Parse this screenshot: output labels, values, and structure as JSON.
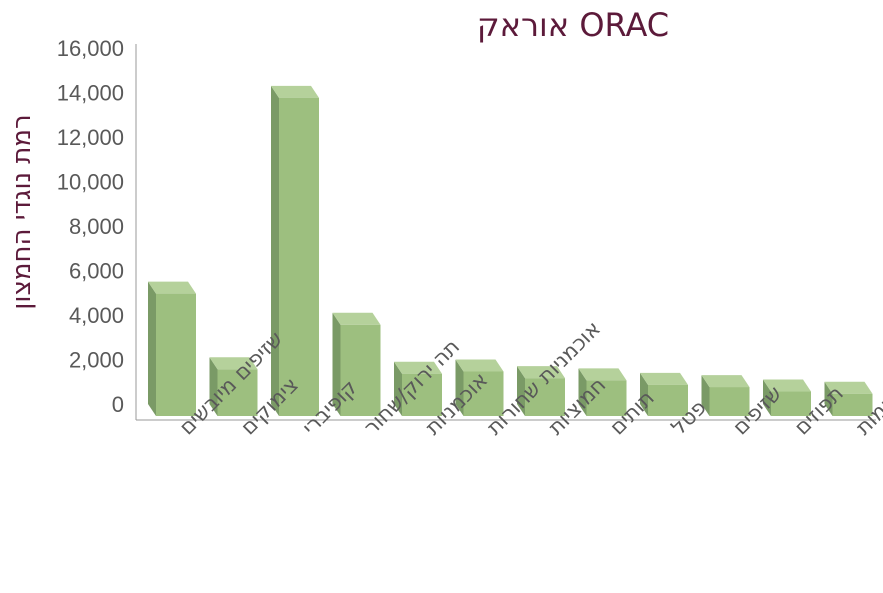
{
  "chart_data": {
    "type": "bar",
    "title": "אוראק ORAC",
    "ylabel": "רמת נוגדי החמצון",
    "xlabel": "",
    "ylim": [
      0,
      16000
    ],
    "yticks": [
      0,
      2000,
      4000,
      6000,
      8000,
      10000,
      12000,
      14000,
      16000
    ],
    "ytick_labels": [
      "0",
      "2,000",
      "4,000",
      "6,000",
      "8,000",
      "10,000",
      "12,000",
      "14,000",
      "16,000"
    ],
    "categories": [
      "שזיפים מיובשים",
      "צימוקים",
      "קופיברי",
      "תה ירוק/שחור",
      "אוכמניות",
      "אוכמניות שחורות",
      "חמוציות",
      "תותים",
      "פטל",
      "שזיפים",
      "תפוזים",
      "אשכליות אדומות"
    ],
    "values": [
      5500,
      2100,
      14300,
      4100,
      1900,
      2000,
      1700,
      1600,
      1400,
      1300,
      1100,
      1000
    ],
    "grid": false,
    "colors": {
      "bar_front": "#9dbf7f",
      "bar_side": "#7a9a66",
      "bar_top": "#b5d19b",
      "title": "#5c1a3a",
      "axis_text": "#595959",
      "axis_line": "#9a9a9a"
    }
  }
}
